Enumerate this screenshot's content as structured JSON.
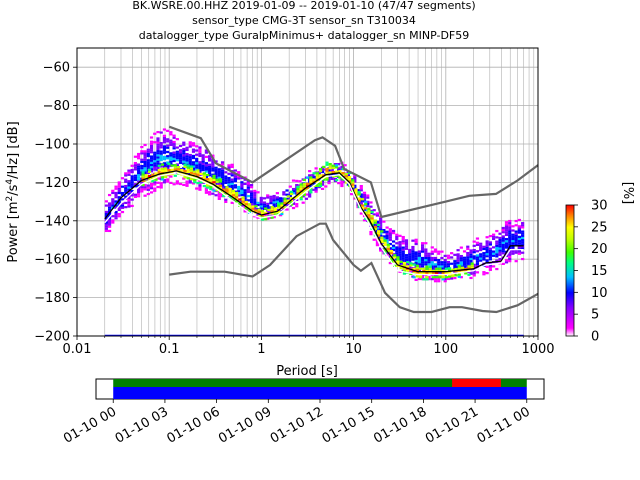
{
  "chart_data": {
    "type": "heatmap",
    "title_lines": [
      "BK.WSRE.00.HHZ   2019-01-09 -- 2019-01-10  (47/47 segments)",
      "sensor_type CMG-3T sensor_sn T310034",
      "datalogger_type GuralpMinimus+ datalogger_sn MINP-DF59"
    ],
    "xlabel": "Period [s]",
    "ylabel": "Power [m²/s⁴/Hz] [dB]",
    "x_scale": "log",
    "xlim": [
      0.01,
      1000
    ],
    "ylim": [
      -200,
      -50
    ],
    "grid": true,
    "x_ticks": [
      {
        "value": 0.01,
        "label": "0.01"
      },
      {
        "value": 0.1,
        "label": "0.1"
      },
      {
        "value": 1,
        "label": "1"
      },
      {
        "value": 10,
        "label": "10"
      },
      {
        "value": 100,
        "label": "100"
      },
      {
        "value": 1000,
        "label": "1000"
      }
    ],
    "y_ticks": [
      {
        "value": -60,
        "label": "−60"
      },
      {
        "value": -80,
        "label": "−80"
      },
      {
        "value": -100,
        "label": "−100"
      },
      {
        "value": -120,
        "label": "−120"
      },
      {
        "value": -140,
        "label": "−140"
      },
      {
        "value": -160,
        "label": "−160"
      },
      {
        "value": -180,
        "label": "−180"
      },
      {
        "value": -200,
        "label": "−200"
      }
    ],
    "colorbar": {
      "label": "[%]",
      "range": [
        0,
        30
      ],
      "ticks": [
        {
          "value": 0,
          "label": "0"
        },
        {
          "value": 5,
          "label": "5"
        },
        {
          "value": 10,
          "label": "10"
        },
        {
          "value": 15,
          "label": "15"
        },
        {
          "value": 20,
          "label": "20"
        },
        {
          "value": 25,
          "label": "25"
        },
        {
          "value": 30,
          "label": "30"
        }
      ],
      "colors": [
        "#ffffff",
        "#ff00ff",
        "#8000ff",
        "#0000ff",
        "#00c0ff",
        "#00ff80",
        "#40ff00",
        "#c0ff00",
        "#ffff00",
        "#ff8000",
        "#ff0000"
      ]
    },
    "noise_models": [
      {
        "name": "NHNM",
        "color": "#666666",
        "points": [
          [
            0.1,
            -91
          ],
          [
            0.22,
            -97
          ],
          [
            0.32,
            -110
          ],
          [
            0.8,
            -120
          ],
          [
            3.8,
            -98
          ],
          [
            4.6,
            -96.5
          ],
          [
            6.3,
            -101
          ],
          [
            7.9,
            -113
          ],
          [
            15.4,
            -120
          ],
          [
            20,
            -138
          ],
          [
            100,
            -130
          ],
          [
            180,
            -127
          ],
          [
            350,
            -126
          ],
          [
            600,
            -119
          ],
          [
            1000,
            -111
          ]
        ]
      },
      {
        "name": "NLNM",
        "color": "#666666",
        "points": [
          [
            0.1,
            -168
          ],
          [
            0.17,
            -166.5
          ],
          [
            0.4,
            -166.5
          ],
          [
            0.8,
            -169
          ],
          [
            1.24,
            -163
          ],
          [
            2.4,
            -148
          ],
          [
            4.3,
            -141.5
          ],
          [
            5.0,
            -141.5
          ],
          [
            6.0,
            -150
          ],
          [
            10,
            -163
          ],
          [
            12,
            -166
          ],
          [
            15.6,
            -162
          ],
          [
            21.9,
            -177.5
          ],
          [
            31.6,
            -185
          ],
          [
            45,
            -187.5
          ],
          [
            70,
            -187.5
          ],
          [
            110,
            -185
          ],
          [
            150,
            -185
          ],
          [
            250,
            -187
          ],
          [
            354,
            -187.5
          ],
          [
            600,
            -184
          ],
          [
            1000,
            -178
          ]
        ]
      },
      {
        "name": "mean",
        "color": "#000000",
        "points": [
          [
            0.02,
            -139
          ],
          [
            0.03,
            -128
          ],
          [
            0.05,
            -119
          ],
          [
            0.08,
            -115.5
          ],
          [
            0.12,
            -114
          ],
          [
            0.2,
            -117
          ],
          [
            0.3,
            -121
          ],
          [
            0.5,
            -128
          ],
          [
            0.8,
            -135
          ],
          [
            1.0,
            -137
          ],
          [
            1.5,
            -135
          ],
          [
            3,
            -123
          ],
          [
            5,
            -116
          ],
          [
            7,
            -115
          ],
          [
            9,
            -120
          ],
          [
            12,
            -133
          ],
          [
            15,
            -140
          ],
          [
            20,
            -152
          ],
          [
            30,
            -163
          ],
          [
            50,
            -166.5
          ],
          [
            100,
            -166.5
          ],
          [
            200,
            -165
          ],
          [
            270,
            -162
          ],
          [
            400,
            -161
          ],
          [
            500,
            -153
          ],
          [
            700,
            -153
          ]
        ]
      },
      {
        "name": "mode",
        "color": "#ffffff",
        "points": [
          [
            0.02,
            -141
          ],
          [
            0.03,
            -131
          ],
          [
            0.05,
            -121
          ],
          [
            0.08,
            -116.5
          ],
          [
            0.12,
            -115
          ],
          [
            0.2,
            -118
          ],
          [
            0.3,
            -122
          ],
          [
            0.5,
            -130
          ],
          [
            0.8,
            -137
          ],
          [
            1.0,
            -138.5
          ],
          [
            1.5,
            -137
          ],
          [
            3,
            -125
          ],
          [
            5,
            -117
          ],
          [
            7,
            -116
          ],
          [
            9,
            -121
          ],
          [
            12,
            -134
          ],
          [
            15,
            -142
          ],
          [
            20,
            -154
          ],
          [
            30,
            -166
          ],
          [
            50,
            -168
          ],
          [
            100,
            -168
          ],
          [
            200,
            -166
          ],
          [
            270,
            -163
          ],
          [
            400,
            -162
          ],
          [
            500,
            -155
          ],
          [
            700,
            -155
          ]
        ]
      }
    ],
    "psd_density_bands": [
      {
        "name": "main",
        "color_range": [
          1,
          12
        ],
        "points": [
          [
            0.02,
            -148,
            -128
          ],
          [
            0.03,
            -137,
            -118
          ],
          [
            0.05,
            -128,
            -100
          ],
          [
            0.08,
            -123,
            -91
          ],
          [
            0.12,
            -121,
            -97
          ],
          [
            0.2,
            -124,
            -100
          ],
          [
            0.3,
            -128,
            -106
          ],
          [
            0.5,
            -133,
            -112
          ],
          [
            0.8,
            -138,
            -122
          ],
          [
            1.0,
            -140,
            -128
          ],
          [
            1.5,
            -138,
            -124
          ],
          [
            3,
            -130,
            -115
          ],
          [
            5,
            -122,
            -110
          ],
          [
            7,
            -122,
            -110
          ],
          [
            9,
            -126,
            -113
          ],
          [
            12,
            -138,
            -122
          ],
          [
            15,
            -148,
            -130
          ],
          [
            20,
            -158,
            -140
          ],
          [
            30,
            -168,
            -148
          ],
          [
            50,
            -172,
            -150
          ],
          [
            100,
            -172,
            -158
          ],
          [
            200,
            -170,
            -150
          ],
          [
            300,
            -167,
            -148
          ],
          [
            450,
            -163,
            -140
          ],
          [
            700,
            -160,
            -140
          ]
        ]
      },
      {
        "name": "high-density",
        "color_range": [
          12,
          30
        ],
        "points": [
          [
            0.05,
            -123,
            -115
          ],
          [
            0.08,
            -119,
            -111
          ],
          [
            0.12,
            -118,
            -110
          ],
          [
            0.2,
            -121,
            -113
          ],
          [
            0.3,
            -125,
            -117
          ],
          [
            0.5,
            -131,
            -124
          ],
          [
            0.8,
            -138,
            -132
          ],
          [
            1.0,
            -140,
            -134
          ],
          [
            1.5,
            -138,
            -131
          ],
          [
            3,
            -127,
            -118
          ],
          [
            5,
            -120,
            -110
          ],
          [
            7,
            -119,
            -112
          ],
          [
            9,
            -124,
            -116
          ],
          [
            12,
            -137,
            -128
          ],
          [
            15,
            -144,
            -135
          ],
          [
            20,
            -156,
            -147
          ],
          [
            30,
            -167,
            -160
          ],
          [
            50,
            -171,
            -164
          ],
          [
            100,
            -171,
            -165
          ],
          [
            200,
            -168,
            -162
          ]
        ]
      }
    ],
    "x_axis_baseline_segments": [
      [
        0.02,
        700
      ]
    ],
    "time_coverage": {
      "start": "2019-01-09 23:00",
      "end": "2019-01-11 01:00",
      "tick_labels": [
        {
          "time": "2019-01-10 00:00",
          "label": "01-10 00"
        },
        {
          "time": "2019-01-10 03:00",
          "label": "01-10 03"
        },
        {
          "time": "2019-01-10 06:00",
          "label": "01-10 06"
        },
        {
          "time": "2019-01-10 09:00",
          "label": "01-10 09"
        },
        {
          "time": "2019-01-10 12:00",
          "label": "01-10 12"
        },
        {
          "time": "2019-01-10 15:00",
          "label": "01-10 15"
        },
        {
          "time": "2019-01-10 18:00",
          "label": "01-10 18"
        },
        {
          "time": "2019-01-10 21:00",
          "label": "01-10 21"
        },
        {
          "time": "2019-01-11 00:00",
          "label": "01-11 00"
        }
      ],
      "bars": [
        {
          "name": "processed",
          "color": "#008000",
          "from": "2019-01-10 00:00",
          "to": "2019-01-11 00:00"
        },
        {
          "name": "excluded",
          "color": "#ff0000",
          "from": "2019-01-10 19:40",
          "to": "2019-01-10 22:30"
        },
        {
          "name": "data",
          "color": "#0000ff",
          "from": "2019-01-10 00:00",
          "to": "2019-01-11 00:00"
        }
      ]
    }
  }
}
